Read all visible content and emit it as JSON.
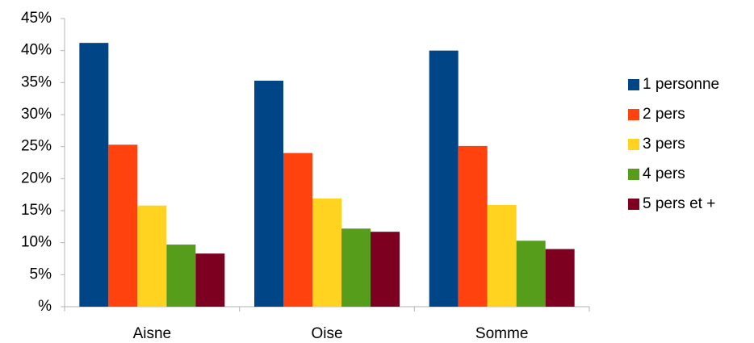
{
  "chart_data": {
    "type": "bar",
    "categories": [
      "Aisne",
      "Oise",
      "Somme"
    ],
    "series": [
      {
        "name": "1 personne",
        "color": "#004586",
        "values": [
          41.2,
          35.3,
          40.0
        ]
      },
      {
        "name": "2 pers",
        "color": "#ff420e",
        "values": [
          25.3,
          24.0,
          25.1
        ]
      },
      {
        "name": "3 pers",
        "color": "#ffd320",
        "values": [
          15.8,
          16.9,
          15.9
        ]
      },
      {
        "name": "4 pers",
        "color": "#579d1c",
        "values": [
          9.7,
          12.2,
          10.3
        ]
      },
      {
        "name": "5 pers et +",
        "color": "#7e0021",
        "values": [
          8.3,
          11.7,
          9.0
        ]
      }
    ],
    "ylim": [
      0,
      45
    ],
    "yticks": [
      {
        "value": 0,
        "label": "%"
      },
      {
        "value": 5,
        "label": "5%"
      },
      {
        "value": 10,
        "label": "10%"
      },
      {
        "value": 15,
        "label": "15%"
      },
      {
        "value": 20,
        "label": "20%"
      },
      {
        "value": 25,
        "label": "25%"
      },
      {
        "value": 30,
        "label": "30%"
      },
      {
        "value": 35,
        "label": "35%"
      },
      {
        "value": 40,
        "label": "40%"
      },
      {
        "value": 45,
        "label": "45%"
      }
    ],
    "grid": false,
    "legend": "right"
  }
}
